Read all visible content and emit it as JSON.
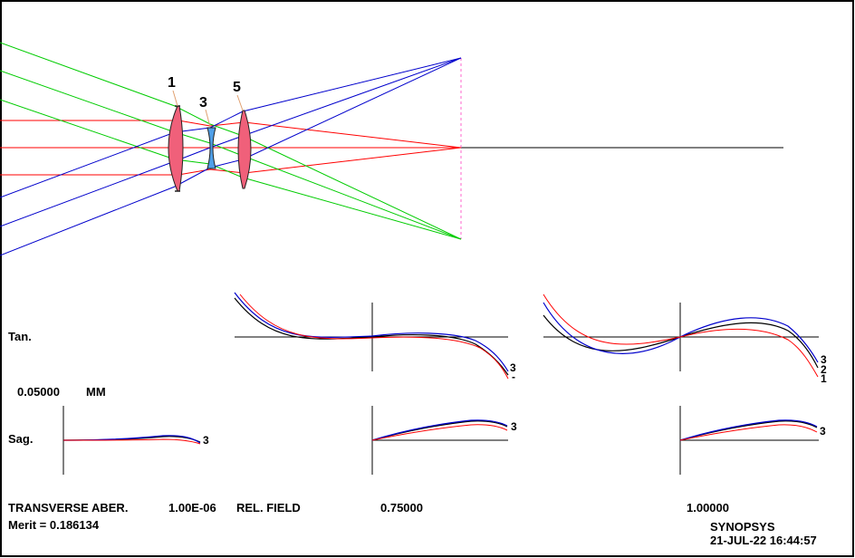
{
  "colors": {
    "axis": "#000000",
    "ray_axial": "#ff0000",
    "ray_mid": "#00cc00",
    "ray_full": "#0000cc",
    "positive_lens": "#f0607a",
    "negative_lens": "#4f9fe8",
    "image_plane": "#ff66cc",
    "curve_black": "#000000",
    "curve_blue": "#0000cc",
    "curve_red": "#ff0000"
  },
  "lens_labels": [
    "1",
    "3",
    "5"
  ],
  "row_labels": {
    "tan": "Tan.",
    "sag": "Sag."
  },
  "scale": {
    "value": "0.05000",
    "unit": "MM"
  },
  "curve_labels": {
    "tan_center": [
      "3",
      "-"
    ],
    "tan_right": [
      "3",
      "2",
      "1"
    ],
    "sag_left": "3",
    "sag_center": "3",
    "sag_right": "3"
  },
  "footer": {
    "title": "TRANSVERSE ABER.",
    "wavelength": "1.00E-06",
    "rel_field_label": "REL. FIELD",
    "field_1": "0.75000",
    "field_2": "1.00000",
    "merit": "Merit = 0.186134",
    "software": "SYNOPSYS",
    "datetime": "21-JUL-22  16:44:57"
  }
}
